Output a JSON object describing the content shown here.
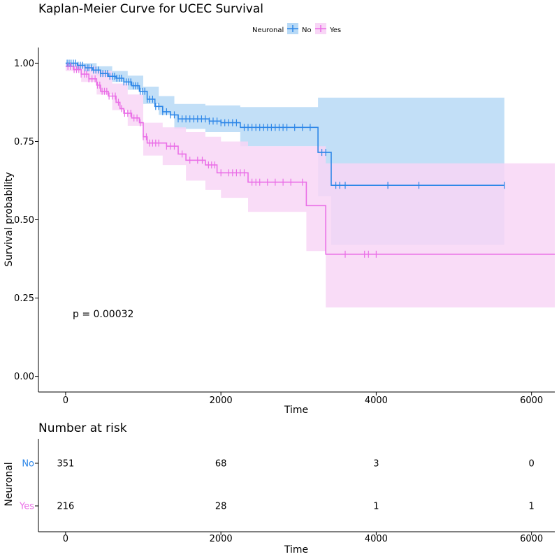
{
  "chart_data": [
    {
      "type": "line",
      "subtype": "kaplan-meier",
      "title": "Kaplan-Meier Curve for UCEC Survival",
      "xlabel": "Time",
      "ylabel": "Survival probability",
      "xlim": [
        -350,
        6300
      ],
      "ylim": [
        -0.05,
        1.05
      ],
      "xticks": [
        0,
        2000,
        4000,
        6000
      ],
      "xtick_labels": [
        "0",
        "2000",
        "4000",
        "6000"
      ],
      "yticks": [
        0,
        0.25,
        0.5,
        0.75,
        1.0
      ],
      "ytick_labels": [
        "0.00",
        "0.25",
        "0.50",
        "0.75",
        "1.00"
      ],
      "grid": false,
      "legend": {
        "title": "Neuronal",
        "position": "top"
      },
      "annotation": "p = 0.00032",
      "annotation_pos": [
        150,
        0.2
      ],
      "series": [
        {
          "name": "No",
          "color": "#2e87e8",
          "fill": "#b7d9f6",
          "steps": [
            [
              0,
              1.0
            ],
            [
              150,
              0.993
            ],
            [
              250,
              0.985
            ],
            [
              350,
              0.978
            ],
            [
              450,
              0.967
            ],
            [
              550,
              0.958
            ],
            [
              650,
              0.952
            ],
            [
              750,
              0.94
            ],
            [
              850,
              0.928
            ],
            [
              950,
              0.91
            ],
            [
              1050,
              0.885
            ],
            [
              1150,
              0.862
            ],
            [
              1250,
              0.845
            ],
            [
              1350,
              0.835
            ],
            [
              1450,
              0.822
            ],
            [
              1850,
              0.815
            ],
            [
              2000,
              0.81
            ],
            [
              2250,
              0.795
            ],
            [
              3250,
              0.715
            ],
            [
              3420,
              0.61
            ],
            [
              5650,
              0.61
            ]
          ],
          "ci_steps": [
            [
              0,
              1.0,
              1.0
            ],
            [
              200,
              0.985,
              1.0
            ],
            [
              400,
              0.96,
              0.99
            ],
            [
              600,
              0.94,
              0.975
            ],
            [
              800,
              0.915,
              0.96
            ],
            [
              1000,
              0.87,
              0.925
            ],
            [
              1200,
              0.835,
              0.895
            ],
            [
              1400,
              0.79,
              0.87
            ],
            [
              1800,
              0.78,
              0.865
            ],
            [
              2250,
              0.735,
              0.86
            ],
            [
              3250,
              0.575,
              0.89
            ],
            [
              3420,
              0.42,
              0.89
            ],
            [
              5650,
              0.42,
              0.89
            ]
          ],
          "censor_x": [
            20,
            45,
            70,
            100,
            130,
            160,
            190,
            220,
            250,
            280,
            300,
            330,
            360,
            390,
            420,
            450,
            480,
            510,
            540,
            570,
            600,
            630,
            660,
            690,
            720,
            750,
            780,
            810,
            840,
            870,
            900,
            930,
            960,
            990,
            1020,
            1050,
            1080,
            1120,
            1160,
            1200,
            1250,
            1300,
            1350,
            1400,
            1450,
            1500,
            1550,
            1600,
            1650,
            1700,
            1750,
            1800,
            1850,
            1900,
            1950,
            2000,
            2050,
            2100,
            2150,
            2200,
            2300,
            2350,
            2400,
            2450,
            2500,
            2550,
            2600,
            2650,
            2700,
            2750,
            2800,
            2850,
            2950,
            3050,
            3150,
            3300,
            3350,
            3480,
            3530,
            3600,
            4150,
            4550,
            5650
          ]
        },
        {
          "name": "Yes",
          "color": "#ea6fe7",
          "fill": "#f8d6f6",
          "steps": [
            [
              0,
              0.99
            ],
            [
              100,
              0.98
            ],
            [
              200,
              0.965
            ],
            [
              300,
              0.95
            ],
            [
              400,
              0.93
            ],
            [
              450,
              0.91
            ],
            [
              550,
              0.895
            ],
            [
              650,
              0.875
            ],
            [
              700,
              0.855
            ],
            [
              750,
              0.84
            ],
            [
              850,
              0.825
            ],
            [
              950,
              0.81
            ],
            [
              1000,
              0.765
            ],
            [
              1050,
              0.745
            ],
            [
              1300,
              0.735
            ],
            [
              1450,
              0.71
            ],
            [
              1550,
              0.69
            ],
            [
              1800,
              0.675
            ],
            [
              1950,
              0.65
            ],
            [
              2350,
              0.62
            ],
            [
              3100,
              0.545
            ],
            [
              3350,
              0.39
            ],
            [
              6300,
              0.39
            ]
          ],
          "ci_steps": [
            [
              0,
              0.975,
              1.0
            ],
            [
              200,
              0.94,
              0.99
            ],
            [
              400,
              0.9,
              0.975
            ],
            [
              600,
              0.85,
              0.935
            ],
            [
              800,
              0.8,
              0.9
            ],
            [
              1000,
              0.705,
              0.81
            ],
            [
              1250,
              0.675,
              0.795
            ],
            [
              1550,
              0.625,
              0.78
            ],
            [
              1800,
              0.595,
              0.765
            ],
            [
              2000,
              0.57,
              0.75
            ],
            [
              2350,
              0.525,
              0.735
            ],
            [
              3100,
              0.4,
              0.735
            ],
            [
              3350,
              0.22,
              0.68
            ],
            [
              6300,
              0.22,
              0.68
            ]
          ],
          "censor_x": [
            30,
            60,
            110,
            140,
            170,
            200,
            240,
            270,
            300,
            340,
            380,
            410,
            440,
            470,
            500,
            530,
            560,
            600,
            640,
            680,
            720,
            760,
            800,
            840,
            880,
            920,
            960,
            1000,
            1040,
            1080,
            1120,
            1160,
            1200,
            1300,
            1350,
            1400,
            1500,
            1600,
            1700,
            1760,
            1840,
            1880,
            1920,
            2000,
            2100,
            2150,
            2200,
            2250,
            2300,
            2400,
            2450,
            2500,
            2600,
            2700,
            2800,
            2900,
            3050,
            3600,
            3850,
            3900,
            4000
          ]
        }
      ]
    },
    {
      "type": "table",
      "title": "Number at risk",
      "xlabel": "Time",
      "ylabel": "Neuronal",
      "xlim": [
        -350,
        6300
      ],
      "xticks": [
        0,
        2000,
        4000,
        6000
      ],
      "xtick_labels": [
        "0",
        "2000",
        "4000",
        "6000"
      ],
      "rows": [
        {
          "label": "No",
          "color": "#2e87e8",
          "values": [
            "351",
            "68",
            "3",
            "0"
          ]
        },
        {
          "label": "Yes",
          "color": "#ea6fe7",
          "values": [
            "216",
            "28",
            "1",
            "1"
          ]
        }
      ]
    }
  ]
}
